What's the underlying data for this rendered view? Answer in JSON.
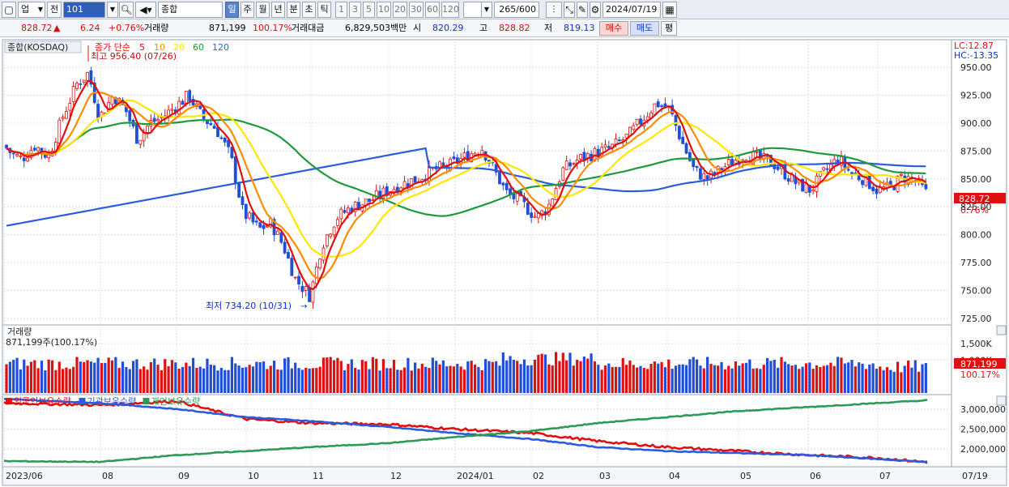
{
  "toolbar": {
    "market_select": "업",
    "prev_label": "전",
    "code": "101",
    "name": "종합(KOSDAQ)",
    "periods": [
      "일",
      "주",
      "월",
      "년",
      "분",
      "초",
      "틱"
    ],
    "selected_period": "일",
    "minutes": [
      "1",
      "3",
      "5",
      "10",
      "20",
      "30",
      "60",
      "120"
    ],
    "count": "265/600",
    "date": "2024/07/19"
  },
  "quote": {
    "price": "828.72",
    "change": "6.24",
    "change_pct": "+0.76%",
    "volume_label": "거래량",
    "volume": "871,199",
    "volume_pct": "100.17%",
    "amount_label": "거래대금",
    "amount": "6,829,503백만",
    "open_label": "시",
    "open": "820.29",
    "high_label": "고",
    "high": "828.82",
    "low_label": "저",
    "low": "819.13",
    "buy_label": "매수",
    "sell_label": "매도",
    "eval_label": "평"
  },
  "price_panel": {
    "title": "종합(KOSDAQ)",
    "ma_title": "종가 단순",
    "ma_periods": [
      "5",
      "10",
      "20",
      "60",
      "120"
    ],
    "ma_colors": [
      "#e01010",
      "#ff8c00",
      "#ffe600",
      "#1e9a3a",
      "#2b5ce0"
    ],
    "high_annotation": "최고 956.40 (07/26)",
    "low_annotation": "최저 734.20 (10/31)",
    "lc": "LC:12.87",
    "hc": "HC:-13.35",
    "last_price_tag": "828.72",
    "last_pct_tag": "0.76%",
    "y_ticks": [
      "950.00",
      "925.00",
      "900.00",
      "875.00",
      "850.00",
      "825.00",
      "800.00",
      "775.00",
      "750.00",
      "725.00"
    ]
  },
  "volume_panel": {
    "title": "거래량",
    "subtitle": "871,199주(100.17%)",
    "y_ticks": [
      "1,500K",
      "1,000K"
    ],
    "last_tag": "871,199",
    "last_pct_tag": "100.17%"
  },
  "holdings_panel": {
    "series": [
      {
        "name": "외국인보유수량",
        "color": "#e01010"
      },
      {
        "name": "기관보유수량",
        "color": "#2b5ce0"
      },
      {
        "name": "개인보유수량",
        "color": "#2e9a5a"
      }
    ],
    "y_ticks": [
      "3,000,000",
      "2,500,000",
      "2,000,000"
    ]
  },
  "x_axis": [
    "2023/06",
    "08",
    "09",
    "10",
    "11",
    "12",
    "2024/01",
    "02",
    "03",
    "04",
    "05",
    "06",
    "07",
    "07/19"
  ],
  "chart_data": {
    "type": "line",
    "title": "종합(KOSDAQ)",
    "series": [
      {
        "name": "종가",
        "x": [
          "2023/06",
          "07",
          "08",
          "09",
          "10",
          "11",
          "12",
          "2024/01",
          "02",
          "03",
          "04",
          "05",
          "06",
          "07/19"
        ],
        "values": [
          880,
          870,
          940,
          915,
          860,
          745,
          830,
          875,
          810,
          860,
          915,
          855,
          860,
          828.72
        ]
      },
      {
        "name": "외국인보유수량",
        "x": [
          "2023/06",
          "08",
          "09",
          "10",
          "11",
          "12",
          "2024/01",
          "02",
          "03",
          "04",
          "05",
          "06",
          "07",
          "07/19"
        ],
        "values": [
          3150000,
          3100000,
          3200000,
          2750000,
          2650000,
          2620000,
          2500000,
          2400000,
          2200000,
          2050000,
          1950000,
          1850000,
          1780000,
          1670000
        ]
      },
      {
        "name": "기관보유수량",
        "x": [
          "2023/06",
          "08",
          "09",
          "10",
          "11",
          "12",
          "2024/01",
          "02",
          "03",
          "04",
          "05",
          "06",
          "07",
          "07/19"
        ],
        "values": [
          3250000,
          3150000,
          3000000,
          2800000,
          2700000,
          2550000,
          2400000,
          2250000,
          2050000,
          1950000,
          1900000,
          1850000,
          1750000,
          1680000
        ]
      },
      {
        "name": "개인보유수량",
        "x": [
          "2023/06",
          "08",
          "09",
          "10",
          "11",
          "12",
          "2024/01",
          "02",
          "03",
          "04",
          "05",
          "06",
          "07",
          "07/19"
        ],
        "values": [
          1700000,
          1680000,
          1850000,
          1950000,
          2050000,
          2150000,
          2300000,
          2450000,
          2650000,
          2800000,
          2950000,
          3050000,
          3150000,
          3220000
        ]
      }
    ],
    "ylim": [
      725,
      960
    ]
  }
}
